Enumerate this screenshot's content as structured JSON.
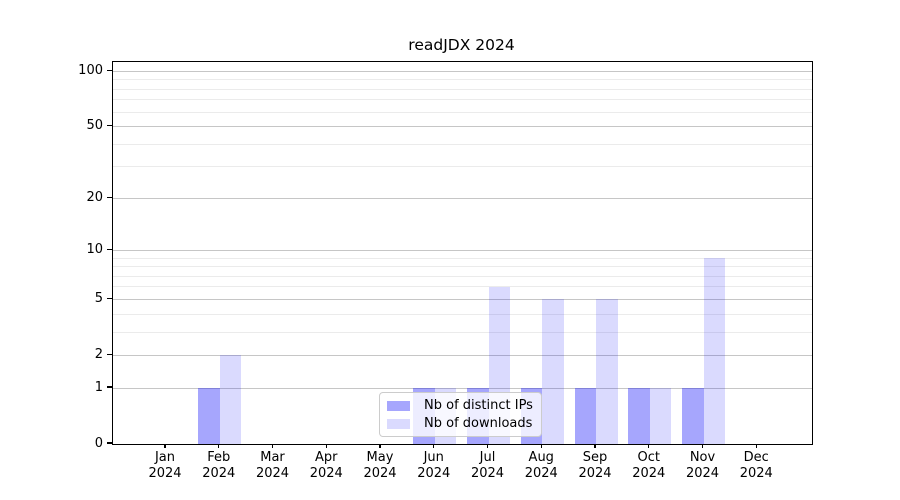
{
  "chart_data": {
    "type": "bar",
    "title": "readJDX 2024",
    "categories": [
      "Jan 2024",
      "Feb 2024",
      "Mar 2024",
      "Apr 2024",
      "May 2024",
      "Jun 2024",
      "Jul 2024",
      "Aug 2024",
      "Sep 2024",
      "Oct 2024",
      "Nov 2024",
      "Dec 2024"
    ],
    "series": [
      {
        "name": "Nb of distinct IPs",
        "values": [
          0,
          1,
          0,
          0,
          0,
          1,
          1,
          1,
          1,
          1,
          1,
          0
        ]
      },
      {
        "name": "Nb of downloads",
        "values": [
          0,
          2,
          0,
          0,
          0,
          1,
          6,
          5,
          5,
          1,
          9,
          0
        ]
      }
    ],
    "xlabel": "",
    "ylabel": "",
    "yticks": [
      0,
      1,
      2,
      5,
      10,
      20,
      50,
      100
    ],
    "minor_gridlines": [
      3,
      4,
      6,
      7,
      8,
      9,
      30,
      40,
      60,
      70,
      80,
      90
    ],
    "ylim": [
      0,
      113
    ],
    "scale": "log1p",
    "grid": true,
    "legend_position": "inside lower-center",
    "colors": {
      "distinct_ips_bar": "rgba(0,0,250,0.35)",
      "downloads_bar": "rgba(0,0,250,0.145)",
      "major_grid": "#c6c6c6",
      "minor_grid": "#ebebeb",
      "spine": "#000000",
      "text": "#000000",
      "background": "#ffffff"
    }
  }
}
